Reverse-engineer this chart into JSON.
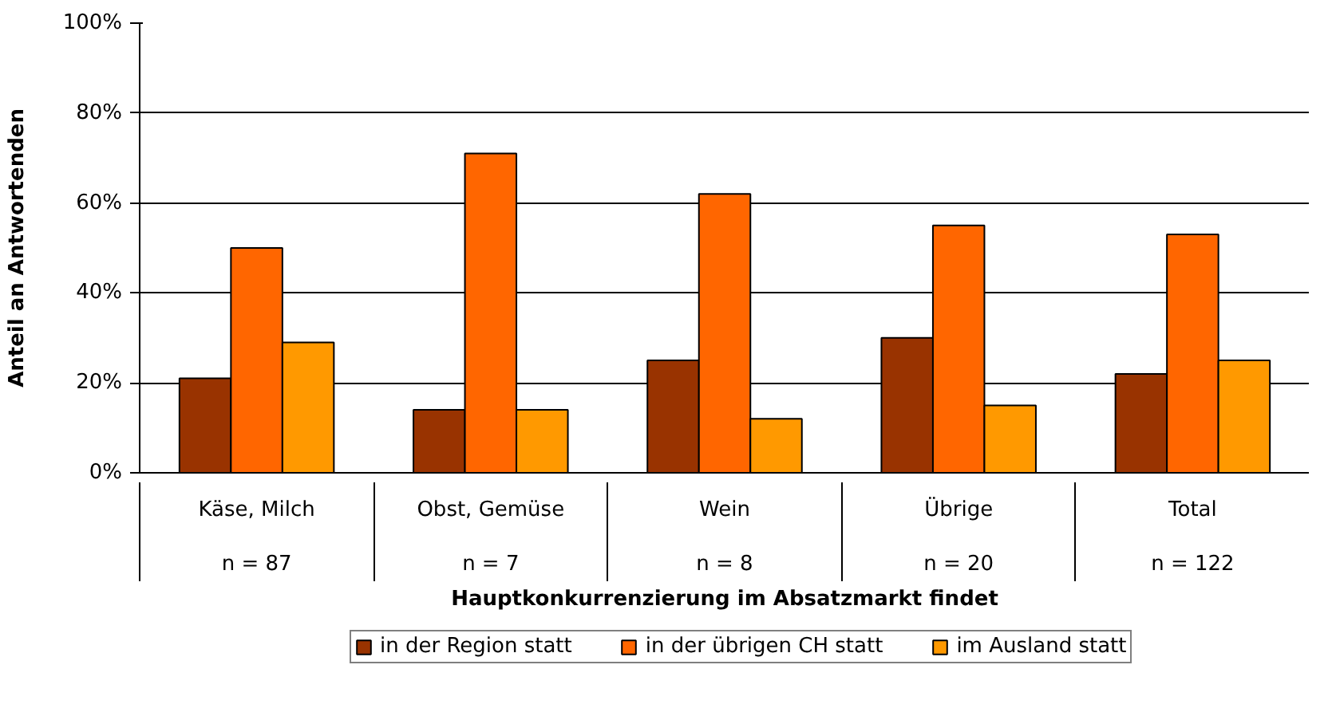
{
  "chart_data": {
    "type": "bar",
    "ylabel": "Anteil an Antwortenden",
    "xlabel": "Hauptkonkurrenzierung im Absatzmarkt findet",
    "categories": [
      "Käse, Milch",
      "Obst, Gemüse",
      "Wein",
      "Übrige",
      "Total"
    ],
    "series": [
      {
        "name": "in der Region statt",
        "color": "#993300",
        "values": [
          21,
          14,
          25,
          30,
          22
        ]
      },
      {
        "name": "in der übrigen CH statt",
        "color": "#ff6600",
        "values": [
          50,
          71,
          62,
          55,
          53
        ]
      },
      {
        "name": "im Ausland statt",
        "color": "#ff9900",
        "values": [
          29,
          14,
          12,
          15,
          25
        ]
      }
    ],
    "ylim": [
      0,
      100
    ],
    "yticks": [
      {
        "value": 0,
        "label": "0%"
      },
      {
        "value": 20,
        "label": "20%"
      },
      {
        "value": 40,
        "label": "40%"
      },
      {
        "value": 60,
        "label": "60%"
      },
      {
        "value": 80,
        "label": "80%"
      },
      {
        "value": 100,
        "label": "100%"
      }
    ],
    "grid": "y",
    "legend": "bottom",
    "annotations": [
      "n = 87",
      "n = 7",
      "n = 8",
      "n = 20",
      "n = 122"
    ]
  }
}
